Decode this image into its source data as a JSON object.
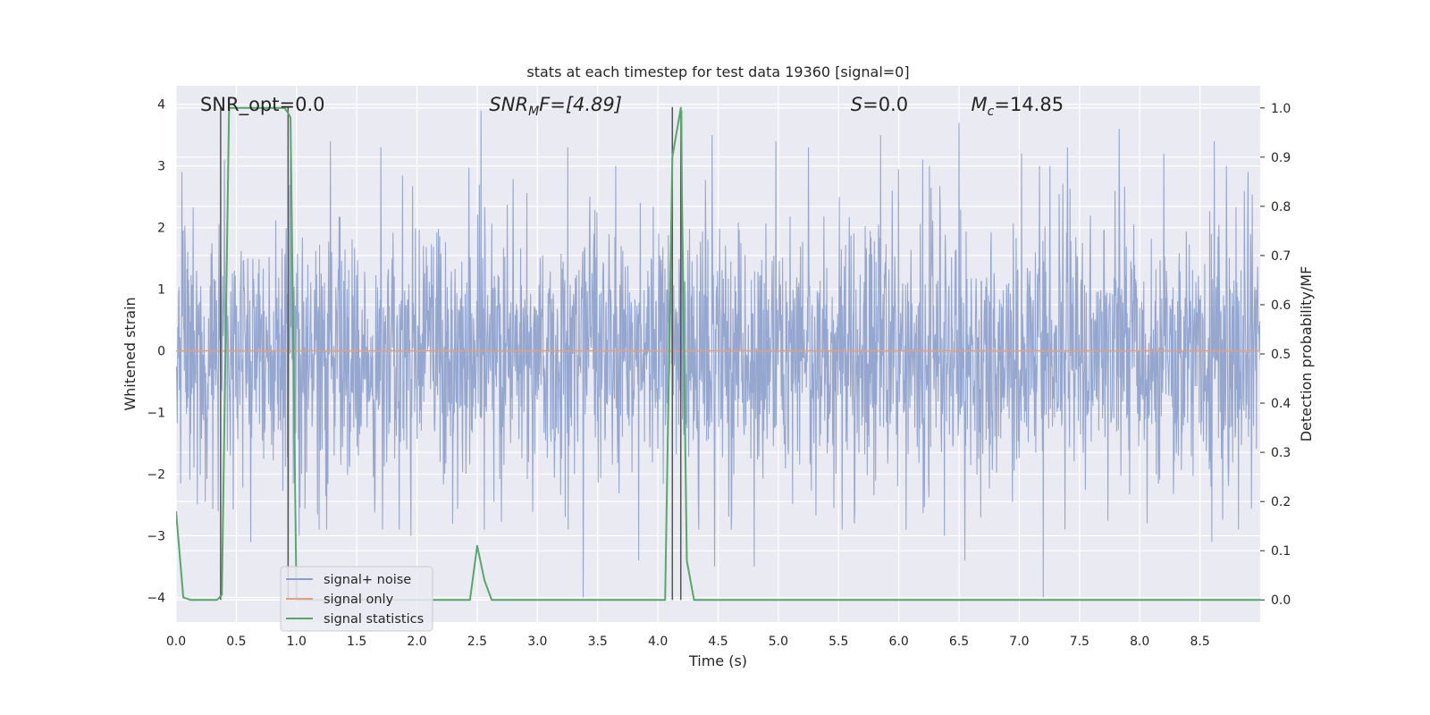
{
  "chart_data": {
    "type": "line",
    "title": "stats at each timestep for test data 19360 [signal=0]",
    "xlabel": "Time (s)",
    "ylabel_left": "Whitened strain",
    "ylabel_right": "Detection probability/MF",
    "xlim": [
      0.0,
      9.0
    ],
    "ylim_left": [
      -4.4,
      4.3
    ],
    "ylim_right": [
      -0.045,
      1.045
    ],
    "x_ticks": [
      "0.0",
      "0.5",
      "1.0",
      "1.5",
      "2.0",
      "2.5",
      "3.0",
      "3.5",
      "4.0",
      "4.5",
      "5.0",
      "5.5",
      "6.0",
      "6.5",
      "7.0",
      "7.5",
      "8.0",
      "8.5"
    ],
    "y_ticks_left": [
      "−4",
      "−3",
      "−2",
      "−1",
      "0",
      "1",
      "2",
      "3",
      "4"
    ],
    "y_ticks_right": [
      "0.0",
      "0.1",
      "0.2",
      "0.3",
      "0.4",
      "0.5",
      "0.6",
      "0.7",
      "0.8",
      "0.9",
      "1.0"
    ],
    "grid": true,
    "legend_position": "lower-left",
    "annotations": {
      "snr_opt": "SNR_opt=0.0",
      "snr_mf_main": "SNR",
      "snr_mf_sub": "M",
      "snr_mf_rest": "F=[4.89]",
      "s_main": "S",
      "s_rest": "=0.0",
      "mc_main": "M",
      "mc_sub": "c",
      "mc_rest": "=14.85"
    },
    "series": [
      {
        "name": "signal+ noise",
        "axis": "left",
        "color": "#8da0cb",
        "note_values": "dense whitened noise, roughly normal, |y| up to ~4",
        "peaks": [
          [
            0.05,
            2.9
          ],
          [
            0.4,
            3.1
          ],
          [
            0.95,
            3.1
          ],
          [
            1.28,
            3.4
          ],
          [
            1.7,
            3.3
          ],
          [
            2.53,
            3.9
          ],
          [
            3.25,
            3.3
          ],
          [
            4.2,
            3.9
          ],
          [
            4.45,
            3.5
          ],
          [
            4.98,
            3.4
          ],
          [
            5.25,
            3.3
          ],
          [
            5.85,
            3.5
          ],
          [
            6.2,
            3.1
          ],
          [
            6.5,
            3.7
          ],
          [
            7.02,
            3.2
          ],
          [
            7.4,
            3.3
          ],
          [
            7.83,
            3.6
          ],
          [
            8.2,
            3.2
          ],
          [
            8.62,
            3.4
          ],
          [
            8.9,
            2.9
          ]
        ],
        "troughs": [
          [
            0.35,
            -2.6
          ],
          [
            0.62,
            -3.1
          ],
          [
            0.93,
            -3.4
          ],
          [
            1.02,
            -3.0
          ],
          [
            1.95,
            -3.0
          ],
          [
            2.56,
            -2.9
          ],
          [
            3.38,
            -4.0
          ],
          [
            3.84,
            -3.4
          ],
          [
            4.47,
            -3.5
          ],
          [
            4.8,
            -3.5
          ],
          [
            5.63,
            -2.8
          ],
          [
            6.38,
            -3.0
          ],
          [
            6.55,
            -3.4
          ],
          [
            6.68,
            -2.7
          ],
          [
            7.2,
            -4.0
          ],
          [
            7.38,
            -2.9
          ],
          [
            8.06,
            -2.8
          ],
          [
            8.6,
            -3.1
          ],
          [
            8.82,
            -2.9
          ]
        ]
      },
      {
        "name": "signal only",
        "axis": "left",
        "color": "#e1a07f",
        "x": [
          0.0,
          9.0
        ],
        "y": [
          0.0,
          0.0
        ]
      },
      {
        "name": "signal statistics",
        "axis": "right",
        "color": "#55a868",
        "x": [
          0.0,
          0.06,
          0.12,
          0.2,
          0.3,
          0.34,
          0.38,
          0.44,
          0.9,
          0.93,
          0.95,
          1.0,
          1.05,
          2.44,
          2.5,
          2.56,
          2.62,
          4.06,
          4.12,
          4.19,
          4.24,
          4.3,
          9.0
        ],
        "y": [
          0.18,
          0.005,
          0.0,
          0.0,
          0.0,
          0.0,
          0.01,
          1.0,
          1.0,
          0.99,
          0.98,
          0.0,
          0.0,
          0.0,
          0.11,
          0.04,
          0.0,
          0.0,
          0.9,
          1.0,
          0.08,
          0.0,
          0.0
        ]
      }
    ],
    "vertical_lines_x": [
      0.37,
      0.93,
      4.12,
      4.19
    ]
  }
}
